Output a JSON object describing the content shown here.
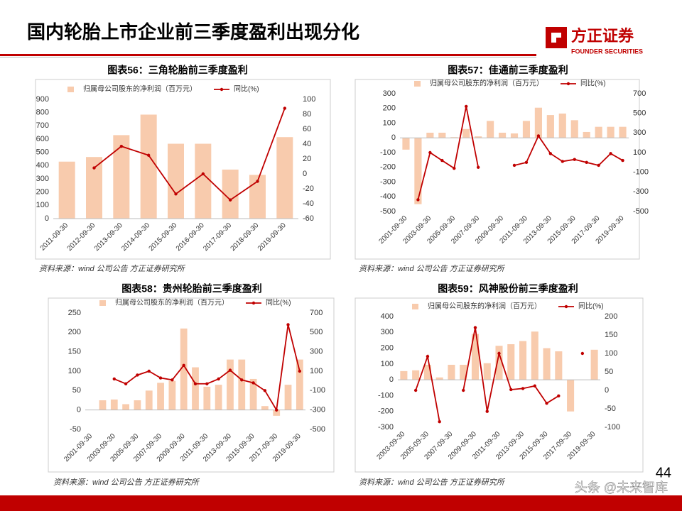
{
  "header": {
    "title": "国内轮胎上市企业前三季度盈利出现分化",
    "logo_name": "方正证券",
    "logo_subtitle": "FOUNDER SECURITIES"
  },
  "page_number": "44",
  "watermark": "头条 @未来智库",
  "chart_data": [
    {
      "type": "bar_line",
      "title": "图表56：三角轮胎前三季度盈利",
      "source": "资料来源：wind 公司公告 方正证券研究所",
      "categories": [
        "2011-09-30",
        "2012-09-30",
        "2013-09-30",
        "2014-09-30",
        "2015-09-30",
        "2016-09-30",
        "2017-09-30",
        "2018-09-30",
        "2019-09-30"
      ],
      "series": [
        {
          "name": "归属母公司股东的净利润（百万元）",
          "color": "#f8cbad",
          "type": "bar",
          "values": [
            430,
            465,
            630,
            785,
            565,
            565,
            370,
            330,
            615
          ]
        },
        {
          "name": "同比(%)",
          "color": "#c00000",
          "type": "line",
          "axis": "y2",
          "values": [
            null,
            8,
            37,
            25,
            -27,
            0,
            -35,
            -10,
            88
          ]
        }
      ],
      "ylim": [
        0,
        900
      ],
      "yticks": [
        0,
        100,
        200,
        300,
        400,
        500,
        600,
        700,
        800,
        900
      ],
      "y2lim": [
        -60,
        100
      ],
      "y2ticks": [
        -60,
        -40,
        -20,
        0,
        20,
        40,
        60,
        80,
        100
      ]
    },
    {
      "type": "bar_line",
      "title": "图表57：佳通前三季度盈利",
      "source": "资料来源：wind 公司公告 方正证券研究所",
      "categories": [
        "2001-09-30",
        null,
        "2003-09-30",
        null,
        "2005-09-30",
        null,
        "2007-09-30",
        null,
        "2009-09-30",
        null,
        "2011-09-30",
        null,
        "2013-09-30",
        null,
        "2015-09-30",
        null,
        "2017-09-30",
        null,
        "2019-09-30"
      ],
      "series": [
        {
          "name": "归属母公司股东的净利润（百万元）",
          "color": "#f8cbad",
          "type": "bar",
          "values": [
            -80,
            -450,
            35,
            35,
            5,
            60,
            10,
            115,
            35,
            30,
            115,
            205,
            155,
            165,
            120,
            40,
            75,
            75,
            75
          ]
        },
        {
          "name": "同比(%)",
          "color": "#c00000",
          "type": "line",
          "axis": "y2",
          "values": [
            null,
            -380,
            100,
            20,
            -60,
            570,
            -50,
            null,
            null,
            -30,
            0,
            270,
            90,
            10,
            30,
            0,
            -30,
            90,
            20
          ]
        }
      ],
      "ylim": [
        -500,
        300
      ],
      "yticks": [
        -500,
        -400,
        -300,
        -200,
        -100,
        0,
        100,
        200,
        300
      ],
      "y2lim": [
        -500,
        700
      ],
      "y2ticks": [
        -500,
        -300,
        -100,
        100,
        300,
        500,
        700
      ]
    },
    {
      "type": "bar_line",
      "title": "图表58：贵州轮胎前三季度盈利",
      "source": "资料来源：wind 公司公告 方正证券研究所",
      "categories": [
        "2001-09-30",
        null,
        "2003-09-30",
        null,
        "2005-09-30",
        null,
        "2007-09-30",
        null,
        "2009-09-30",
        null,
        "2011-09-30",
        null,
        "2013-09-30",
        null,
        "2015-09-30",
        null,
        "2017-09-30",
        null,
        "2019-09-30"
      ],
      "series": [
        {
          "name": "归属母公司股东的净利润（百万元）",
          "color": "#f8cbad",
          "type": "bar",
          "values": [
            null,
            25,
            27,
            15,
            25,
            50,
            70,
            75,
            210,
            110,
            60,
            65,
            130,
            130,
            80,
            10,
            -15,
            65,
            130
          ]
        },
        {
          "name": "同比(%)",
          "color": "#c00000",
          "type": "line",
          "axis": "y2",
          "values": [
            null,
            null,
            20,
            -30,
            60,
            100,
            30,
            10,
            160,
            -30,
            -30,
            20,
            110,
            10,
            -20,
            -100,
            -300,
            580,
            100
          ]
        }
      ],
      "ylim": [
        -50,
        250
      ],
      "yticks": [
        -50,
        0,
        50,
        100,
        150,
        200,
        250
      ],
      "y2lim": [
        -500,
        700
      ],
      "y2ticks": [
        -500,
        -300,
        -100,
        100,
        300,
        500,
        700
      ]
    },
    {
      "type": "bar_line",
      "title": "图表59：风神股份前三季度盈利",
      "source": "资料来源：wind 公司公告 方正证券研究所",
      "categories": [
        "2003-09-30",
        null,
        "2005-09-30",
        null,
        "2007-09-30",
        null,
        "2009-09-30",
        null,
        "2011-09-30",
        null,
        "2013-09-30",
        null,
        "2015-09-30",
        null,
        "2017-09-30",
        null,
        "2019-09-30"
      ],
      "series": [
        {
          "name": "归属母公司股东的净利润（百万元）",
          "color": "#f8cbad",
          "type": "bar",
          "values": [
            55,
            60,
            95,
            15,
            95,
            95,
            290,
            105,
            215,
            225,
            245,
            305,
            200,
            180,
            -200,
            null,
            190
          ]
        },
        {
          "name": "同比(%)",
          "color": "#c00000",
          "type": "line",
          "axis": "y2",
          "values": [
            null,
            0,
            92,
            -85,
            null,
            0,
            170,
            -57,
            100,
            2,
            5,
            12,
            -35,
            -15,
            null,
            100,
            null
          ]
        }
      ],
      "ylim": [
        -300,
        400
      ],
      "yticks": [
        -300,
        -200,
        -100,
        0,
        100,
        200,
        300,
        400
      ],
      "y2lim": [
        -100,
        200
      ],
      "y2ticks": [
        -100,
        -50,
        0,
        50,
        100,
        150,
        200
      ]
    }
  ]
}
